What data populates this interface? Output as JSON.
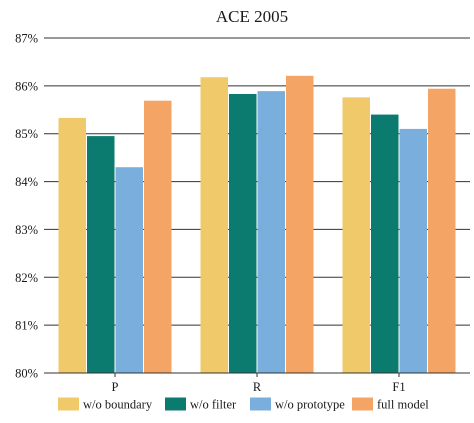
{
  "chart_data": {
    "type": "bar",
    "title": "ACE 2005",
    "xlabel": "",
    "ylabel": "",
    "categories": [
      "P",
      "R",
      "F1"
    ],
    "ylim": [
      80,
      87
    ],
    "yticks": [
      80,
      81,
      82,
      83,
      84,
      85,
      86,
      87
    ],
    "ytick_labels": [
      "80%",
      "81%",
      "82%",
      "83%",
      "84%",
      "85%",
      "86%",
      "87%"
    ],
    "grid": "horizontal",
    "legend_position": "bottom",
    "series": [
      {
        "name": "w/o boundary",
        "color": "#f0c96a",
        "values": [
          85.33,
          86.18,
          85.76
        ]
      },
      {
        "name": "w/o filter",
        "color": "#0b7a6f",
        "values": [
          84.95,
          85.83,
          85.4
        ]
      },
      {
        "name": "w/o prototype",
        "color": "#7aaedd",
        "values": [
          84.3,
          85.89,
          85.1
        ]
      },
      {
        "name": "full model",
        "color": "#f4a464",
        "values": [
          85.69,
          86.21,
          85.94
        ]
      }
    ]
  }
}
